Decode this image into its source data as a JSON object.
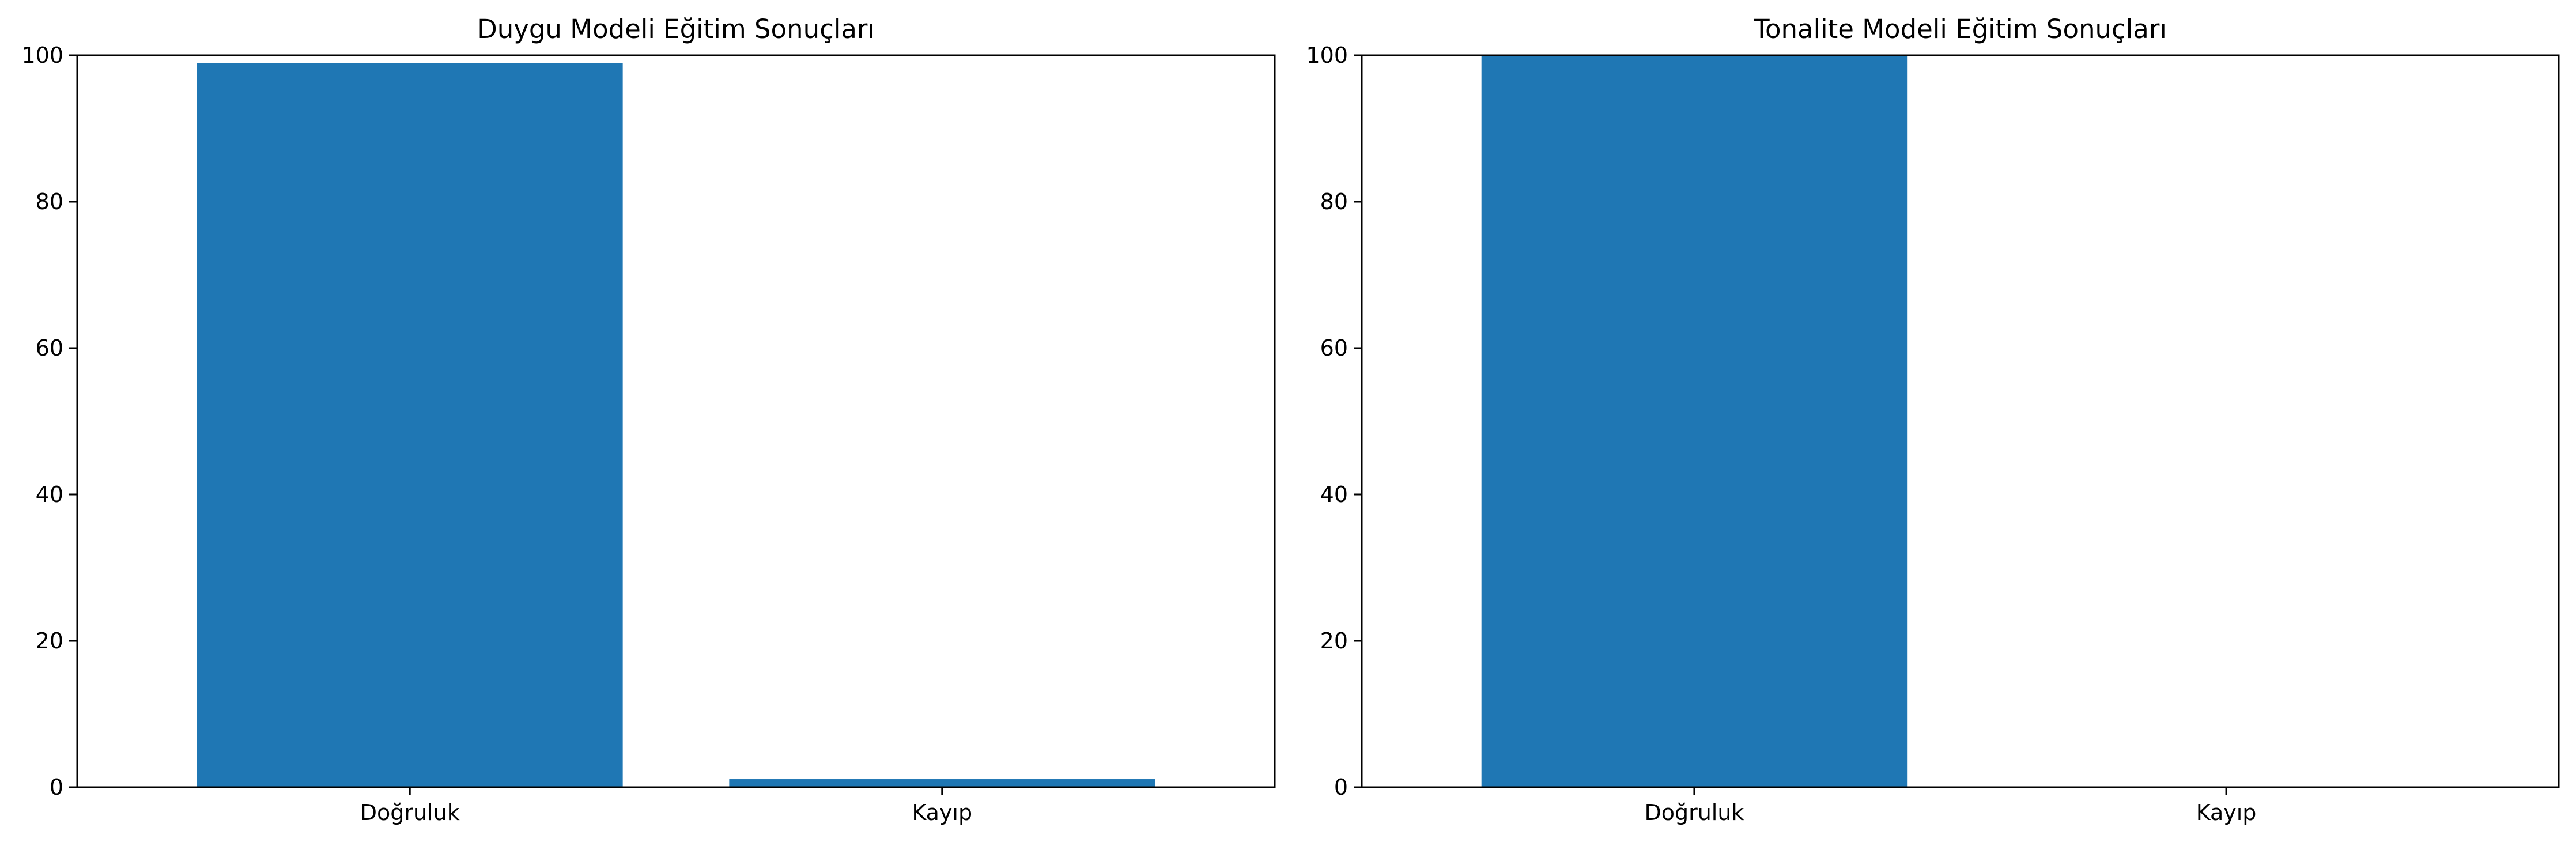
{
  "chart_data": [
    {
      "type": "bar",
      "title": "Duygu Modeli Eğitim Sonuçları",
      "xlabel": "",
      "ylabel": "",
      "categories": [
        "Doğruluk",
        "Kayıp"
      ],
      "values": [
        98.9,
        1.1
      ],
      "ylim": [
        0,
        100
      ],
      "yticks": [
        "0",
        "20",
        "40",
        "60",
        "80",
        "100"
      ],
      "grid": false,
      "color": "#1f77b4"
    },
    {
      "type": "bar",
      "title": "Tonalite Modeli Eğitim Sonuçları",
      "xlabel": "",
      "ylabel": "",
      "categories": [
        "Doğruluk",
        "Kayıp"
      ],
      "values": [
        100,
        0.0
      ],
      "ylim": [
        0,
        100
      ],
      "yticks": [
        "0",
        "20",
        "40",
        "60",
        "80",
        "100"
      ],
      "grid": false,
      "color": "#1f77b4"
    }
  ]
}
